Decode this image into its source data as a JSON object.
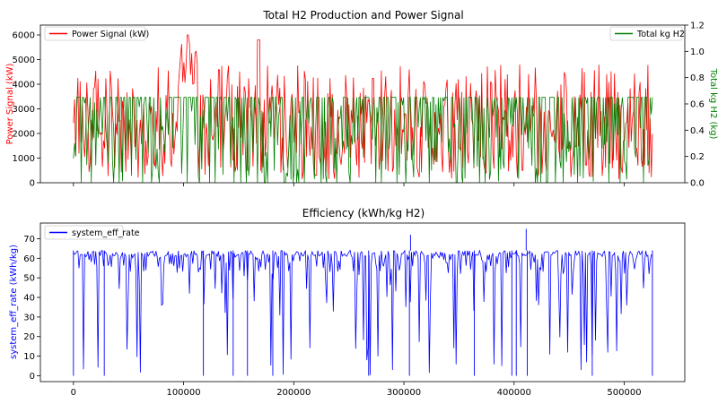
{
  "chart_data": [
    {
      "type": "line",
      "title": "Total H2 Production and Power Signal",
      "xlabel": "",
      "ylabel": "Power Signal (kW)",
      "ylabel_right": "Total kg H2 (kg)",
      "xlim": [
        -30000,
        555000
      ],
      "ylim": [
        0,
        6400
      ],
      "ylim_right": [
        0,
        1.2
      ],
      "yticks": [
        "0",
        "1000",
        "2000",
        "3000",
        "4000",
        "5000",
        "6000"
      ],
      "yticks_right": [
        "0.0",
        "0.2",
        "0.4",
        "0.6",
        "0.8",
        "1.0",
        "1.2"
      ],
      "grid": false,
      "legend_left": "top-left",
      "legend_right": "top-right",
      "series": [
        {
          "name": "Power Signal (kW)",
          "axis": "left",
          "color": "#ff0000",
          "summary": {
            "x_min": 0,
            "x_max": 525600,
            "typical_low": 300,
            "typical_high": 3700,
            "peak_x": 104000,
            "peak_y": 6000,
            "secondary_peak_x": 168000,
            "secondary_peak_y": 5800
          }
        },
        {
          "name": "Total kg H2",
          "axis": "right",
          "color": "#008000",
          "summary": {
            "x_min": 0,
            "x_max": 525600,
            "cap": 0.65,
            "min": 0.0
          }
        }
      ],
      "colors": {
        "left_axis": "#ff0000",
        "right_axis": "#008000"
      }
    },
    {
      "type": "line",
      "title": "Efficiency (kWh/kg H2)",
      "xlabel": "",
      "ylabel": "system_eff_rate (kWh/kg)",
      "xlim": [
        -30000,
        555000
      ],
      "ylim": [
        -3,
        78
      ],
      "xticks": [
        "0",
        "100000",
        "200000",
        "300000",
        "400000",
        "500000"
      ],
      "yticks": [
        "0",
        "10",
        "20",
        "30",
        "40",
        "50",
        "60",
        "70"
      ],
      "grid": false,
      "legend": "top-left",
      "series": [
        {
          "name": "system_eff_rate",
          "color": "#0000ff",
          "summary": {
            "x_min": 0,
            "x_max": 525600,
            "typical_low": 55,
            "typical_high": 64,
            "spikes": [
              {
                "x": 306000,
                "y": 72
              },
              {
                "x": 411000,
                "y": 75
              }
            ]
          }
        }
      ],
      "colors": {
        "left_axis": "#0000ff"
      }
    }
  ]
}
